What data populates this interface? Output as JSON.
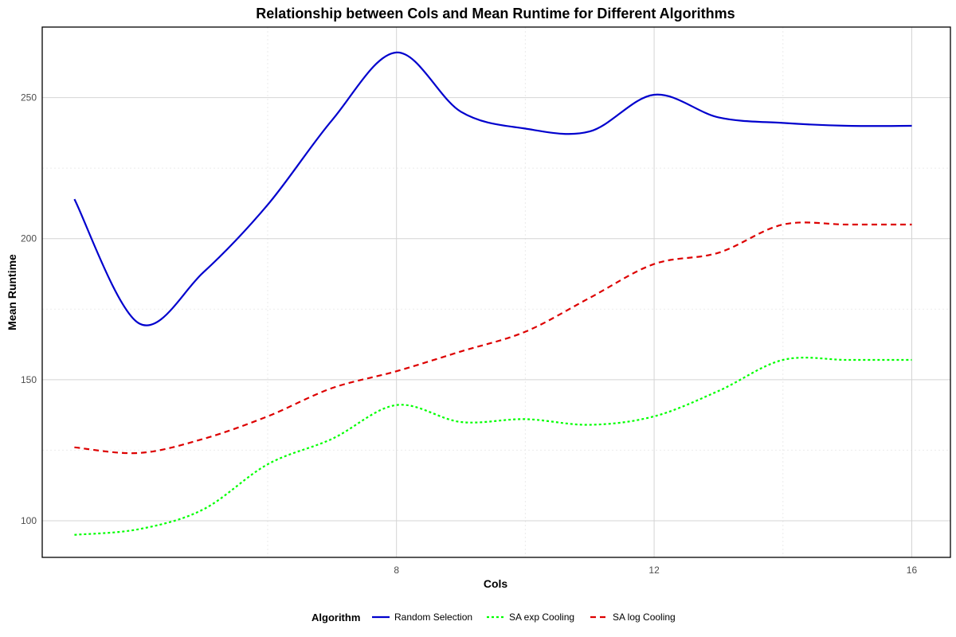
{
  "chart_data": {
    "type": "line",
    "title": "Relationship between Cols and Mean Runtime for Different Algorithms",
    "xlabel": "Cols",
    "ylabel": "Mean Runtime",
    "xlim": [
      2.5,
      16.6
    ],
    "ylim": [
      87,
      275
    ],
    "x_ticks": [
      8,
      12,
      16
    ],
    "x_tick_labels": [
      "8",
      "12",
      "16"
    ],
    "y_ticks": [
      100,
      150,
      200,
      250
    ],
    "y_tick_labels": [
      "100",
      "150",
      "200",
      "250"
    ],
    "minor_x": [
      6,
      10,
      14
    ],
    "minor_y": [
      125,
      175,
      225
    ],
    "grid": true,
    "legend_title": "Algorithm",
    "legend_position": "bottom",
    "x": [
      3,
      4,
      5,
      6,
      7,
      8,
      9,
      10,
      11,
      12,
      13,
      14,
      15,
      16
    ],
    "series": [
      {
        "name": "Random Selection",
        "color": "#0000cd",
        "dash": "solid",
        "values": [
          214,
          170,
          188,
          212,
          242,
          266,
          245,
          239,
          238,
          251,
          243,
          241,
          240,
          240
        ]
      },
      {
        "name": "SA exp Cooling",
        "color": "#00ff00",
        "dash": "dotted",
        "values": [
          95,
          97,
          104,
          120,
          129,
          141,
          135,
          136,
          134,
          137,
          146,
          157,
          157,
          157
        ]
      },
      {
        "name": "SA log Cooling",
        "color": "#dd0000",
        "dash": "dashed",
        "values": [
          126,
          124,
          129,
          137,
          147,
          153,
          160,
          167,
          179,
          191,
          195,
          205,
          205,
          205
        ]
      }
    ]
  }
}
